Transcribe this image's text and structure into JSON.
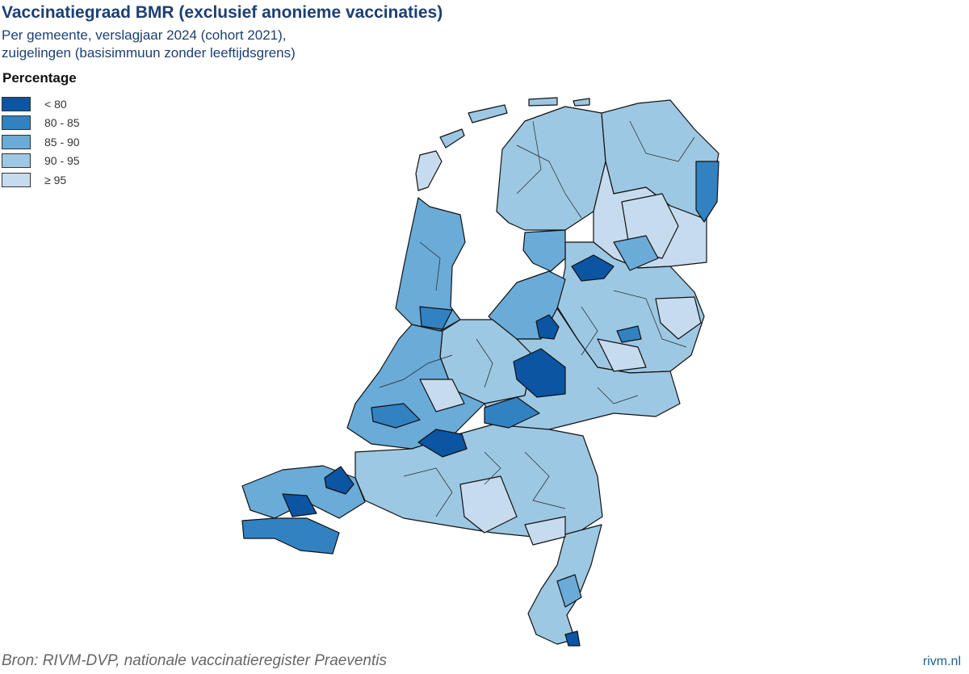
{
  "header": {
    "title": "Vaccinatiegraad BMR (exclusief anonieme vaccinaties)",
    "subtitle": [
      "Per gemeente, verslagjaar 2024 (cohort 2021),",
      "zuigelingen (basisimmuun zonder leeftijdsgrens)"
    ]
  },
  "legend": {
    "title": "Percentage",
    "items": [
      {
        "label": "< 80",
        "color": "#0b55a3"
      },
      {
        "label": "80 - 85",
        "color": "#3282c2"
      },
      {
        "label": "85 - 90",
        "color": "#6aabd8"
      },
      {
        "label": "90 - 95",
        "color": "#9dc8e3"
      },
      {
        "label": "≥ 95",
        "color": "#c7dbef"
      }
    ]
  },
  "footer": {
    "source": "Bron: RIVM-DVP, nationale vaccinatieregister Praeventis",
    "site": "rivm.nl"
  }
}
